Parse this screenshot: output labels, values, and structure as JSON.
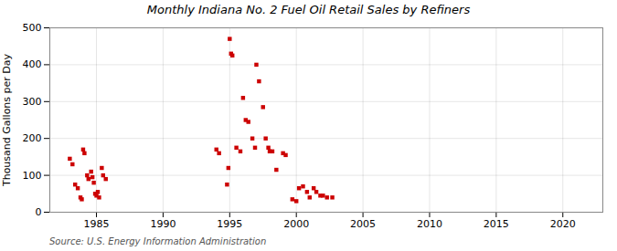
{
  "chart_data": {
    "type": "scatter",
    "title": "Monthly Indiana No. 2 Fuel Oil Retail Sales by Refiners",
    "ylabel": "Thousand Gallons per Day",
    "source": "Source: U.S. Energy Information Administration",
    "color": "#cc0000",
    "marker": "square",
    "grid": true,
    "xlim": [
      1981.5,
      2023
    ],
    "ylim": [
      0,
      500
    ],
    "xticks": [
      1985,
      1990,
      1995,
      2000,
      2005,
      2010,
      2015,
      2020
    ],
    "yticks": [
      0,
      100,
      200,
      300,
      400,
      500
    ],
    "x": [
      1983.0,
      1983.2,
      1983.4,
      1983.6,
      1983.8,
      1983.9,
      1984.0,
      1984.1,
      1984.3,
      1984.4,
      1984.6,
      1984.7,
      1984.8,
      1984.9,
      1985.0,
      1985.1,
      1985.2,
      1985.4,
      1985.5,
      1985.7,
      1994.0,
      1994.2,
      1994.8,
      1994.9,
      1995.0,
      1995.1,
      1995.2,
      1995.5,
      1995.8,
      1996.0,
      1996.2,
      1996.4,
      1996.7,
      1996.9,
      1997.0,
      1997.2,
      1997.5,
      1997.7,
      1997.9,
      1998.0,
      1998.2,
      1998.5,
      1999.0,
      1999.2,
      1999.7,
      2000.0,
      2000.2,
      2000.5,
      2000.8,
      2001.0,
      2001.3,
      2001.5,
      2001.8,
      2002.0,
      2002.3,
      2002.7
    ],
    "values": [
      145,
      130,
      75,
      65,
      40,
      35,
      170,
      160,
      100,
      90,
      110,
      95,
      80,
      50,
      45,
      55,
      40,
      120,
      100,
      90,
      170,
      160,
      75,
      120,
      470,
      430,
      425,
      175,
      165,
      310,
      250,
      245,
      200,
      175,
      400,
      355,
      285,
      200,
      175,
      165,
      165,
      115,
      160,
      155,
      35,
      30,
      65,
      70,
      55,
      40,
      65,
      55,
      45,
      45,
      40,
      40
    ]
  }
}
